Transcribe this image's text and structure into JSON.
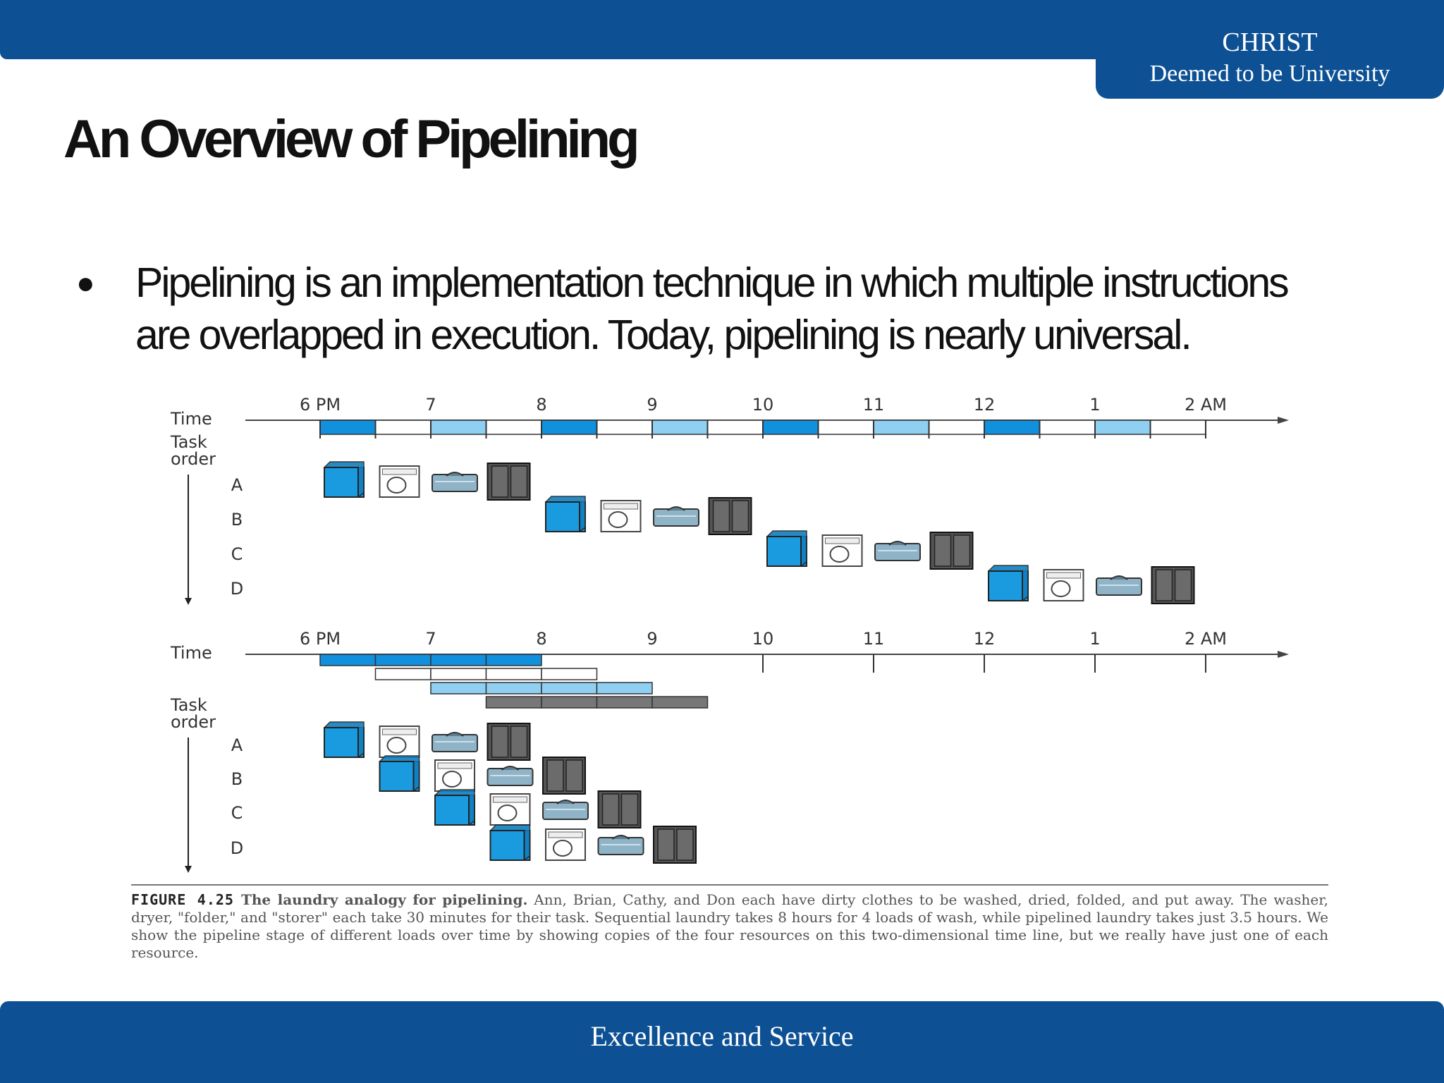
{
  "brand": {
    "name": "CHRIST",
    "subtitle": "Deemed to be University"
  },
  "slide": {
    "title": "An Overview of Pipelining",
    "bullet_symbol": "●",
    "bullet": "Pipelining is an implementation technique in which multiple instructions are overlapped in execution. Today, pipelining is nearly universal."
  },
  "diagram": {
    "time_label": "Time",
    "task_order_label": "Task\norder",
    "time_ticks": [
      "6 PM",
      "7",
      "8",
      "9",
      "10",
      "11",
      "12",
      "1",
      "2 AM"
    ],
    "tasks": [
      "A",
      "B",
      "C",
      "D"
    ],
    "stages": [
      "washer-icon",
      "dryer-icon",
      "folder-icon",
      "storer-icon"
    ],
    "sequential_start_slot": [
      0,
      4,
      8,
      12
    ],
    "pipelined_start_slot": [
      0,
      1,
      2,
      3
    ],
    "colors": {
      "washer": "#1a9be0",
      "dryer": "#ffffff",
      "folder": "#8fb3c7",
      "storer": "#555555",
      "timeline_blue": "#1190dd",
      "timeline_light": "#8fd0f2",
      "timeline_gray": "#777777"
    }
  },
  "caption": {
    "label": "FIGURE 4.25",
    "title": "The laundry analogy for pipelining.",
    "text": "Ann, Brian, Cathy, and Don each have dirty clothes to be washed, dried, folded, and put away. The washer, dryer, \"folder,\" and \"storer\" each take 30 minutes for their task. Sequential laundry takes 8 hours for 4 loads of wash, while pipelined laundry takes just 3.5 hours. We show the pipeline stage of different loads over time by showing copies of the four resources on this two-dimensional time line, but we really have just one of each resource."
  },
  "footer": {
    "text": "Excellence and Service"
  }
}
